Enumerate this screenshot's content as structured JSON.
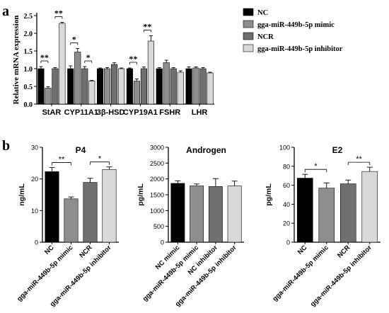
{
  "panel_labels": {
    "a": "a",
    "b": "b"
  },
  "colors": {
    "nc": "#000000",
    "mimic": "#8e8e8e",
    "ncr": "#6f6f6f",
    "inhibitor": "#d9d9d9"
  },
  "chart_data": [
    {
      "type": "bar",
      "panel": "a",
      "ylabel": "Relative mRNA expression",
      "ylim": [
        0,
        2.5
      ],
      "yticks": [
        "0.0",
        "0.5",
        "1.0",
        "1.5",
        "2.0",
        "2.5"
      ],
      "categories": [
        "StAR",
        "CYP11A1",
        "3β-HSD",
        "CYP19A1",
        "FSHR",
        "LHR"
      ],
      "legend": {
        "position": "right",
        "entries": [
          "NC",
          "gga-miR-449b-5p mimic",
          "NCR",
          "gga-miR-449b-5p inhibitor"
        ]
      },
      "series": [
        {
          "name": "NC",
          "values": [
            1.0,
            1.0,
            1.0,
            1.0,
            1.0,
            1.0
          ],
          "errors": [
            0.06,
            0.08,
            0.02,
            0.02,
            0.03,
            0.05
          ]
        },
        {
          "name": "gga-miR-449b-5p mimic",
          "values": [
            0.45,
            1.47,
            1.0,
            0.65,
            1.17,
            1.02
          ],
          "errors": [
            0.04,
            0.1,
            0.03,
            0.06,
            0.07,
            0.03
          ]
        },
        {
          "name": "NCR",
          "values": [
            1.0,
            1.0,
            1.12,
            1.0,
            1.0,
            1.0
          ],
          "errors": [
            0.03,
            0.06,
            0.05,
            0.05,
            0.03,
            0.03
          ]
        },
        {
          "name": "gga-miR-449b-5p inhibitor",
          "values": [
            2.28,
            0.65,
            1.0,
            1.78,
            0.9,
            0.88
          ],
          "errors": [
            0.03,
            0.02,
            0.02,
            0.15,
            0.04,
            0.02
          ]
        }
      ],
      "annotations": [
        {
          "text": "**",
          "cat": 0,
          "from": 0,
          "to": 1
        },
        {
          "text": "**",
          "cat": 0,
          "from": 2,
          "to": 3
        },
        {
          "text": "*",
          "cat": 1,
          "from": 0,
          "to": 1
        },
        {
          "text": "*",
          "cat": 1,
          "from": 2,
          "to": 3
        },
        {
          "text": "**",
          "cat": 3,
          "from": 0,
          "to": 1
        },
        {
          "text": "**",
          "cat": 3,
          "from": 2,
          "to": 3
        }
      ]
    },
    {
      "type": "bar",
      "panel": "b",
      "title": "P4",
      "ylabel": "ng/mL",
      "ylim": [
        0,
        30
      ],
      "yticks": [
        "0",
        "10",
        "20",
        "30"
      ],
      "categories": [
        "NC",
        "gga-miR-449b-5p mimic",
        "NCR",
        "gga-miR-449b-5p inhibitor"
      ],
      "values": [
        22.3,
        13.7,
        18.9,
        23.0
      ],
      "errors": [
        1.3,
        0.6,
        1.3,
        0.8
      ],
      "annotations": [
        {
          "text": "**",
          "from": 0,
          "to": 1
        },
        {
          "text": "*",
          "from": 2,
          "to": 3
        }
      ]
    },
    {
      "type": "bar",
      "panel": "b",
      "title": "Androgen",
      "ylabel": "pg/mL",
      "ylim": [
        0,
        3000
      ],
      "yticks": [
        "0",
        "500",
        "1000",
        "1500",
        "2000",
        "2500",
        "3000"
      ],
      "categories": [
        "NC mimic",
        "gga-miR-449b-5p mimic",
        "NC inhibitor",
        "gga-miR-449b-5p inhibitor"
      ],
      "values": [
        1860,
        1780,
        1760,
        1780
      ],
      "errors": [
        80,
        60,
        250,
        150
      ],
      "annotations": []
    },
    {
      "type": "bar",
      "panel": "b",
      "title": "E2",
      "ylabel": "pg/mL",
      "ylim": [
        0,
        100
      ],
      "yticks": [
        "0",
        "20",
        "40",
        "60",
        "80",
        "100"
      ],
      "categories": [
        "NC",
        "gga-miR-449b-5p mimic",
        "NCR",
        "gga-miR-449b-5p inhibitor"
      ],
      "values": [
        67.5,
        57.0,
        61.5,
        74.5
      ],
      "errors": [
        4.0,
        5.5,
        4.0,
        4.5
      ],
      "annotations": [
        {
          "text": "*",
          "from": 0,
          "to": 1
        },
        {
          "text": "**",
          "from": 2,
          "to": 3
        }
      ]
    }
  ]
}
